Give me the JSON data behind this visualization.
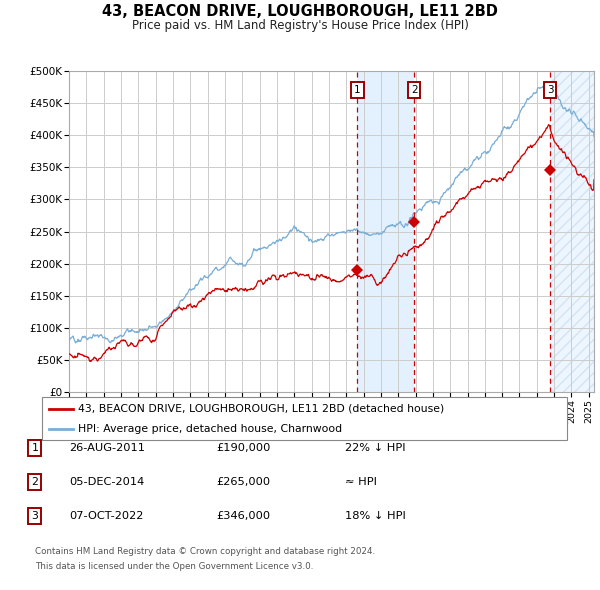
{
  "title": "43, BEACON DRIVE, LOUGHBOROUGH, LE11 2BD",
  "subtitle": "Price paid vs. HM Land Registry's House Price Index (HPI)",
  "legend_line1": "43, BEACON DRIVE, LOUGHBOROUGH, LE11 2BD (detached house)",
  "legend_line2": "HPI: Average price, detached house, Charnwood",
  "footer1": "Contains HM Land Registry data © Crown copyright and database right 2024.",
  "footer2": "This data is licensed under the Open Government Licence v3.0.",
  "table": [
    {
      "num": "1",
      "date": "26-AUG-2011",
      "price": "£190,000",
      "note": "22% ↓ HPI"
    },
    {
      "num": "2",
      "date": "05-DEC-2014",
      "price": "£265,000",
      "note": "≈ HPI"
    },
    {
      "num": "3",
      "date": "07-OCT-2022",
      "price": "£346,000",
      "note": "18% ↓ HPI"
    }
  ],
  "sale_dates": [
    2011.647,
    2014.923,
    2022.769
  ],
  "sale_prices": [
    190000,
    265000,
    346000
  ],
  "red_line_color": "#cc0000",
  "blue_line_color": "#7aaed6",
  "bg_color": "#ffffff",
  "plot_bg_color": "#ffffff",
  "grid_color": "#cccccc",
  "shade_color": "#ddeeff",
  "ylim": [
    0,
    500000
  ],
  "xlim_start": 1995.0,
  "xlim_end": 2025.3
}
